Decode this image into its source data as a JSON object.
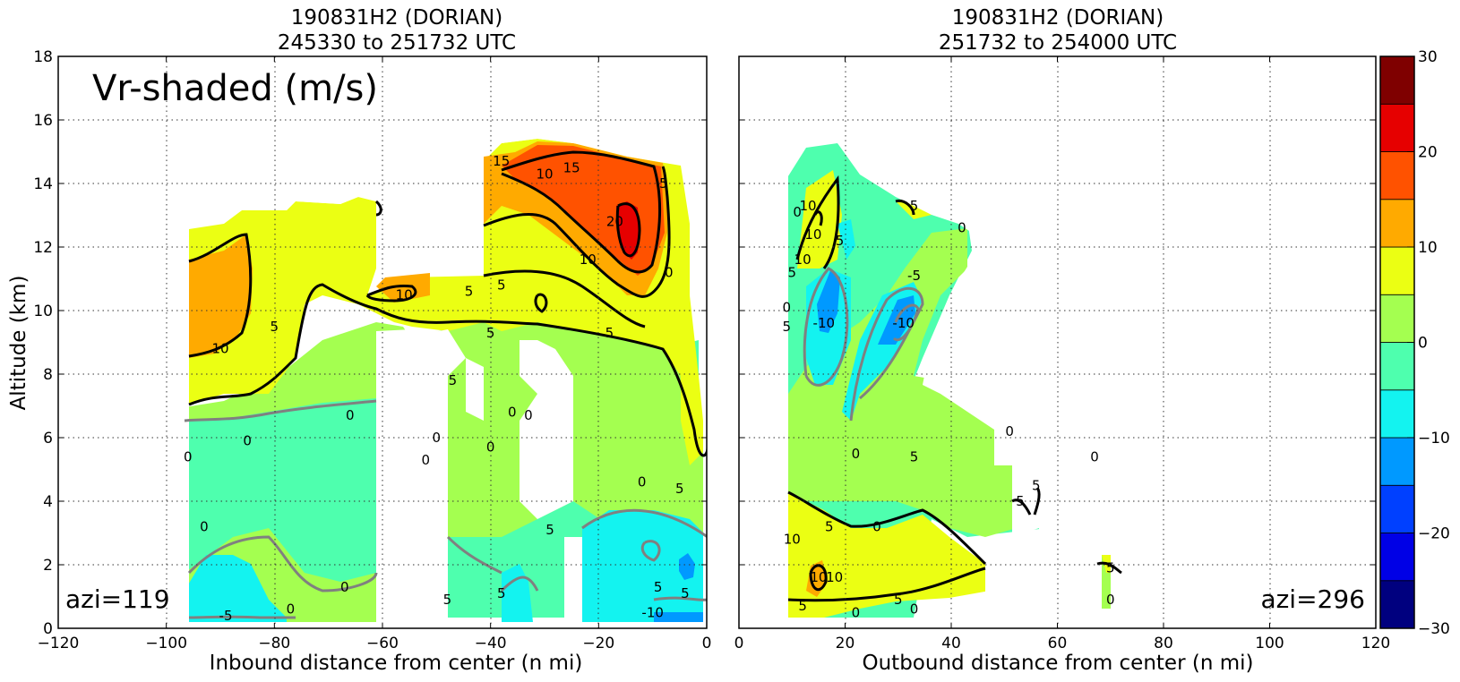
{
  "chart_data": [
    {
      "type": "heatmap",
      "title": [
        "190831H2 (DORIAN)",
        "245330 to 251732 UTC"
      ],
      "panel_label": "Vr-shaded (m/s)",
      "azimuth_label": "azi=119",
      "xlabel": "Inbound distance from center (n mi)",
      "ylabel": "Altitude (km)",
      "xlim": [
        -120,
        0
      ],
      "ylim": [
        0,
        18
      ],
      "xticks": [
        "−120",
        "−100",
        "−80",
        "−60",
        "−40",
        "−20",
        "0"
      ],
      "yticks": [
        "0",
        "2",
        "4",
        "6",
        "8",
        "10",
        "12",
        "14",
        "16",
        "18"
      ],
      "grid": true,
      "contour_labels": [
        {
          "text": "15",
          "x": -38,
          "y": 14.7
        },
        {
          "text": "10",
          "x": -30,
          "y": 14.3
        },
        {
          "text": "15",
          "x": -25,
          "y": 14.5
        },
        {
          "text": "5",
          "x": -8,
          "y": 14.0
        },
        {
          "text": "20",
          "x": -17,
          "y": 12.8
        },
        {
          "text": "10",
          "x": -22,
          "y": 11.6
        },
        {
          "text": "0",
          "x": -7,
          "y": 11.2
        },
        {
          "text": "10",
          "x": -56,
          "y": 10.5
        },
        {
          "text": "5",
          "x": -44,
          "y": 10.6
        },
        {
          "text": "5",
          "x": -38,
          "y": 10.8
        },
        {
          "text": "5",
          "x": -40,
          "y": 9.3
        },
        {
          "text": "5",
          "x": -18,
          "y": 9.3
        },
        {
          "text": "5",
          "x": -80,
          "y": 9.5
        },
        {
          "text": "10",
          "x": -90,
          "y": 8.8
        },
        {
          "text": "5",
          "x": -47,
          "y": 7.8
        },
        {
          "text": "0",
          "x": -66,
          "y": 6.7
        },
        {
          "text": "0",
          "x": -33,
          "y": 6.7
        },
        {
          "text": "0",
          "x": -36,
          "y": 6.8
        },
        {
          "text": "0",
          "x": -85,
          "y": 5.9
        },
        {
          "text": "0",
          "x": -50,
          "y": 6.0
        },
        {
          "text": "0",
          "x": -40,
          "y": 5.7
        },
        {
          "text": "0",
          "x": -96,
          "y": 5.4
        },
        {
          "text": "0",
          "x": -52,
          "y": 5.3
        },
        {
          "text": "0",
          "x": -12,
          "y": 4.6
        },
        {
          "text": "5",
          "x": -5,
          "y": 4.4
        },
        {
          "text": "0",
          "x": -93,
          "y": 3.2
        },
        {
          "text": "5",
          "x": -29,
          "y": 3.1
        },
        {
          "text": "0",
          "x": -67,
          "y": 1.3
        },
        {
          "text": "5",
          "x": -38,
          "y": 1.1
        },
        {
          "text": "5",
          "x": -48,
          "y": 0.9
        },
        {
          "text": "5",
          "x": -9,
          "y": 1.3
        },
        {
          "text": "5",
          "x": -4,
          "y": 1.1
        },
        {
          "text": "0",
          "x": -77,
          "y": 0.6
        },
        {
          "text": "-5",
          "x": -89,
          "y": 0.4
        },
        {
          "text": "-10",
          "x": -10,
          "y": 0.5
        }
      ]
    },
    {
      "type": "heatmap",
      "title": [
        "190831H2 (DORIAN)",
        "251732 to 254000 UTC"
      ],
      "azimuth_label": "azi=296",
      "xlabel": "Outbound distance from center (n mi)",
      "xlim": [
        0,
        120
      ],
      "ylim": [
        0,
        18
      ],
      "xticks": [
        "0",
        "20",
        "40",
        "60",
        "80",
        "100",
        "120"
      ],
      "grid": true,
      "contour_labels": [
        {
          "text": "0",
          "x": 11,
          "y": 13.1
        },
        {
          "text": "10",
          "x": 13,
          "y": 13.3
        },
        {
          "text": "10",
          "x": 14,
          "y": 12.4
        },
        {
          "text": "5",
          "x": 19,
          "y": 12.2
        },
        {
          "text": "10",
          "x": 12,
          "y": 11.6
        },
        {
          "text": "5",
          "x": 10,
          "y": 11.2
        },
        {
          "text": "5",
          "x": 33,
          "y": 13.3
        },
        {
          "text": "0",
          "x": 42,
          "y": 12.6
        },
        {
          "text": "-5",
          "x": 33,
          "y": 11.1
        },
        {
          "text": "0",
          "x": 9,
          "y": 10.1
        },
        {
          "text": "5",
          "x": 9,
          "y": 9.5
        },
        {
          "text": "-10",
          "x": 16,
          "y": 9.6
        },
        {
          "text": "-10",
          "x": 31,
          "y": 9.6
        },
        {
          "text": "0",
          "x": 51,
          "y": 6.2
        },
        {
          "text": "0",
          "x": 22,
          "y": 5.5
        },
        {
          "text": "5",
          "x": 33,
          "y": 5.4
        },
        {
          "text": "0",
          "x": 67,
          "y": 5.4
        },
        {
          "text": "5",
          "x": 56,
          "y": 4.5
        },
        {
          "text": "5",
          "x": 53,
          "y": 4.0
        },
        {
          "text": "0",
          "x": 26,
          "y": 3.2
        },
        {
          "text": "5",
          "x": 17,
          "y": 3.2
        },
        {
          "text": "10",
          "x": 10,
          "y": 2.8
        },
        {
          "text": "10",
          "x": 15,
          "y": 1.6
        },
        {
          "text": "10",
          "x": 18,
          "y": 1.6
        },
        {
          "text": "5",
          "x": 70,
          "y": 1.9
        },
        {
          "text": "5",
          "x": 30,
          "y": 0.9
        },
        {
          "text": "5",
          "x": 12,
          "y": 0.7
        },
        {
          "text": "0",
          "x": 22,
          "y": 0.5
        },
        {
          "text": "0",
          "x": 33,
          "y": 0.6
        },
        {
          "text": "0",
          "x": 70,
          "y": 0.9
        }
      ]
    }
  ],
  "colorbar": {
    "min": -30,
    "max": 30,
    "colors": [
      "#00007f",
      "#0000e6",
      "#0040ff",
      "#0099ff",
      "#13f3f0",
      "#4effae",
      "#a4ff50",
      "#ebff13",
      "#ffaa00",
      "#ff5200",
      "#e60000",
      "#7f0000"
    ],
    "ticks": [
      "30",
      "20",
      "10",
      "0",
      "−10",
      "−20",
      "−30"
    ]
  }
}
